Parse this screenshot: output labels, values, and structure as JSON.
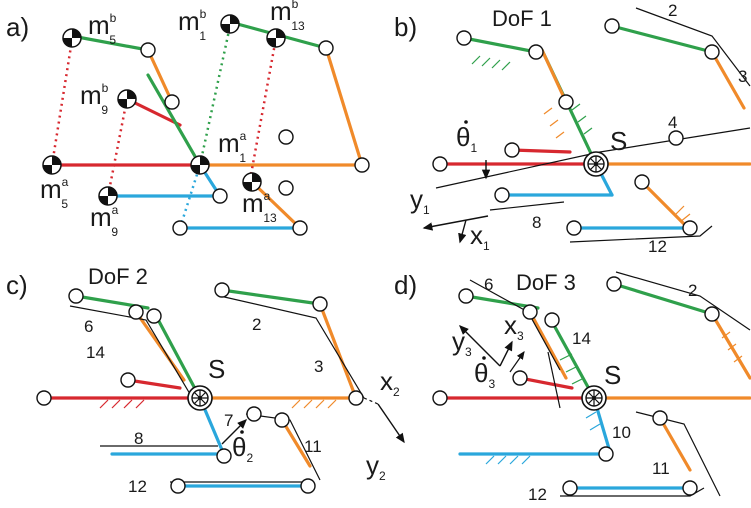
{
  "panels": {
    "a": {
      "label": "a)",
      "masses": [
        {
          "base": "m",
          "sup": "b",
          "sub": "5"
        },
        {
          "base": "m",
          "sup": "b",
          "sub": "1"
        },
        {
          "base": "m",
          "sup": "b",
          "sub": "13"
        },
        {
          "base": "m",
          "sup": "b",
          "sub": "9"
        },
        {
          "base": "m",
          "sup": "a",
          "sub": "1"
        },
        {
          "base": "m",
          "sup": "a",
          "sub": "5"
        },
        {
          "base": "m",
          "sup": "a",
          "sub": "13"
        },
        {
          "base": "m",
          "sup": "a",
          "sub": "9"
        }
      ]
    },
    "b": {
      "label": "b)",
      "title": "DoF 1",
      "point": "S",
      "theta": "θ",
      "theta_sub": "1",
      "axis_y": "y",
      "axis_y_sub": "1",
      "axis_x": "x",
      "axis_x_sub": "1",
      "numbers": [
        "2",
        "3",
        "4",
        "8",
        "12"
      ]
    },
    "c": {
      "label": "c)",
      "title": "DoF 2",
      "point": "S",
      "theta": "θ",
      "theta_sub": "2",
      "axis_x": "x",
      "axis_x_sub": "2",
      "axis_y": "y",
      "axis_y_sub": "2",
      "numbers": [
        "6",
        "2",
        "14",
        "3",
        "7",
        "8",
        "11",
        "12"
      ]
    },
    "d": {
      "label": "d)",
      "title": "DoF 3",
      "point": "S",
      "theta": "θ",
      "theta_sub": "3",
      "axis_x": "x",
      "axis_x_sub": "3",
      "axis_y": "y",
      "axis_y_sub": "3",
      "numbers": [
        "6",
        "2",
        "14",
        "10",
        "11",
        "12"
      ]
    }
  },
  "colors": {
    "red": "#d7282f",
    "green": "#2fa04b",
    "orange": "#f08a2a",
    "blue": "#2aa7dc"
  }
}
